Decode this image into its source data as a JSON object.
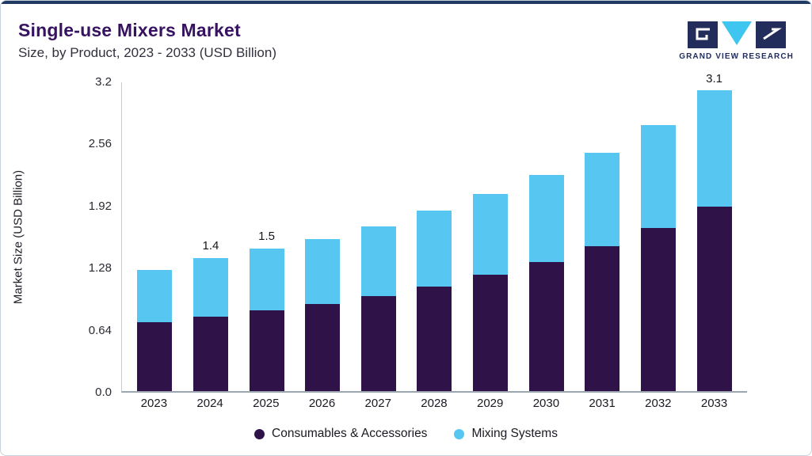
{
  "header": {
    "title": "Single-use Mixers Market",
    "subtitle": "Size, by Product, 2023 - 2033 (USD Billion)"
  },
  "logo": {
    "text": "GRAND VIEW RESEARCH",
    "navy": "#232d5c",
    "cyan": "#3fc6f0"
  },
  "chart_data": {
    "type": "bar",
    "stacked": true,
    "title": "Single-use Mixers Market Size, by Product, 2023 - 2033 (USD Billion)",
    "ylabel": "Market Size (USD Billion)",
    "xlabel": "",
    "ylim": [
      0,
      3.2
    ],
    "yticks": [
      "0.0",
      "0.64",
      "1.28",
      "1.92",
      "2.56",
      "3.2"
    ],
    "ytick_values": [
      0,
      0.64,
      1.28,
      1.92,
      2.56,
      3.2
    ],
    "grid": false,
    "legend_position": "bottom",
    "categories": [
      "2023",
      "2024",
      "2025",
      "2026",
      "2027",
      "2028",
      "2029",
      "2030",
      "2031",
      "2032",
      "2033"
    ],
    "series": [
      {
        "name": "Consumables & Accessories",
        "color": "#2e1248",
        "values": [
          0.71,
          0.77,
          0.83,
          0.9,
          0.98,
          1.08,
          1.2,
          1.33,
          1.49,
          1.68,
          1.9
        ]
      },
      {
        "name": "Mixing Systems",
        "color": "#57c6f0",
        "values": [
          0.54,
          0.6,
          0.64,
          0.67,
          0.72,
          0.78,
          0.83,
          0.9,
          0.97,
          1.06,
          1.2
        ]
      }
    ],
    "totals": [
      1.25,
      1.37,
      1.47,
      1.57,
      1.7,
      1.86,
      2.03,
      2.23,
      2.46,
      2.74,
      3.1
    ],
    "bar_labels": [
      "",
      "1.4",
      "1.5",
      "",
      "",
      "",
      "",
      "",
      "",
      "",
      "3.1"
    ]
  }
}
